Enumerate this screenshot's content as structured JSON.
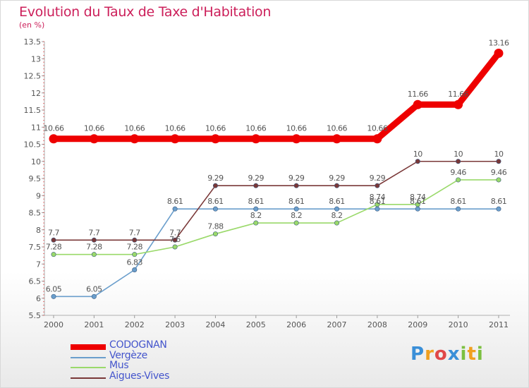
{
  "chart_data": {
    "type": "line",
    "title": "Evolution du Taux de Taxe d'Habitation",
    "ylabel": "(en %)",
    "xlabel": "",
    "x": [
      "2000",
      "2001",
      "2002",
      "2003",
      "2004",
      "2005",
      "2006",
      "2007",
      "2008",
      "2009",
      "2010",
      "2011"
    ],
    "yticks": [
      "5.5",
      "6",
      "6.5",
      "7",
      "7.5",
      "8",
      "8.5",
      "9",
      "9.5",
      "10",
      "10.5",
      "11",
      "11.5",
      "12",
      "12.5",
      "13",
      "13.5"
    ],
    "ylim": [
      5.5,
      13.5
    ],
    "grid": false,
    "legend_position": "bottom-left",
    "series": [
      {
        "name": "CODOGNAN",
        "color": "#ee0000",
        "labels_position": "above",
        "values": [
          10.66,
          10.66,
          10.66,
          10.66,
          10.66,
          10.66,
          10.66,
          10.66,
          10.66,
          11.66,
          11.66,
          13.16
        ],
        "labels": [
          "10.66",
          "10.66",
          "10.66",
          "10.66",
          "10.66",
          "10.66",
          "10.66",
          "10.66",
          "10.66",
          "11.66",
          "11.66",
          "13.16"
        ]
      },
      {
        "name": "Vergèze",
        "color": "#6a9ecc",
        "labels_position": "above",
        "values": [
          6.05,
          6.05,
          6.83,
          8.61,
          8.61,
          8.61,
          8.61,
          8.61,
          8.61,
          8.61,
          8.61,
          8.61
        ],
        "labels": [
          "6.05",
          "6.05",
          "6.83",
          "8.61",
          "8.61",
          "8.61",
          "8.61",
          "8.61",
          "8.61",
          "8.61",
          "8.61",
          "8.61"
        ]
      },
      {
        "name": "Mus",
        "color": "#9ad96a",
        "labels_position": "above",
        "values": [
          7.28,
          7.28,
          7.28,
          7.5,
          7.88,
          8.2,
          8.2,
          8.2,
          8.74,
          8.74,
          9.46,
          9.46
        ],
        "labels": [
          "7.28",
          "7.28",
          "7.28",
          "7.5",
          "7.88",
          "8.2",
          "8.2",
          "8.2",
          "8.74",
          "8.74",
          "9.46",
          "9.46"
        ]
      },
      {
        "name": "Aigues-Vives",
        "color": "#7a3838",
        "labels_position": "above",
        "values": [
          7.7,
          7.7,
          7.7,
          7.7,
          9.29,
          9.29,
          9.29,
          9.29,
          9.29,
          10,
          10,
          10
        ],
        "labels": [
          "7.7",
          "7.7",
          "7.7",
          "7.7",
          "9.29",
          "9.29",
          "9.29",
          "9.29",
          "9.29",
          "10",
          "10",
          "10"
        ]
      }
    ]
  },
  "logo": {
    "letters": [
      "P",
      "r",
      "o",
      "x",
      "i",
      "t",
      "i"
    ],
    "colors": [
      "#3a8fd8",
      "#f0a020",
      "#e04848",
      "#3a8fd8",
      "#7cc040",
      "#f0a020",
      "#7cc040"
    ]
  }
}
